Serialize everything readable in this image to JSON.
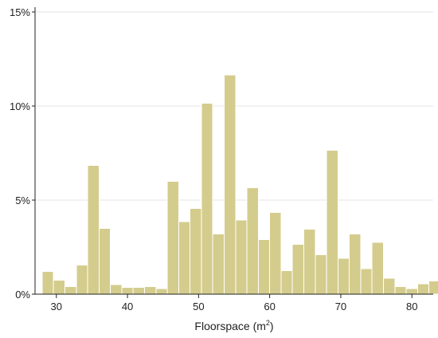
{
  "chart_data": {
    "type": "bar",
    "subtype": "histogram",
    "xlabel": "Floorspace (m",
    "xlabel_superscript": "2",
    "xlabel_suffix": ")",
    "ylabel": "",
    "xlim": [
      27,
      83
    ],
    "ylim": [
      0,
      15
    ],
    "y_ticks": [
      0,
      5,
      10,
      15
    ],
    "y_tick_labels": [
      "0%",
      "5%",
      "10%",
      "15%"
    ],
    "x_ticks": [
      30,
      40,
      50,
      60,
      70,
      80
    ],
    "x_tick_labels": [
      "30",
      "40",
      "50",
      "60",
      "70",
      "80"
    ],
    "grid": "horizontal",
    "legend": "none",
    "bin_width": 1.6,
    "bins_start": 28.0,
    "values": [
      1.2,
      0.75,
      0.4,
      1.55,
      6.85,
      3.5,
      0.5,
      0.35,
      0.35,
      0.4,
      0.3,
      6.0,
      3.85,
      4.55,
      10.15,
      3.2,
      11.65,
      3.95,
      5.65,
      2.9,
      4.35,
      1.25,
      2.65,
      3.45,
      2.1,
      7.65,
      1.9,
      3.2,
      1.35,
      2.75,
      0.85,
      0.4,
      0.3,
      0.55,
      0.7
    ],
    "colors": {
      "bar_fill": "#d4cc8d",
      "bar_stroke": "#ffffff",
      "axis": "#222222",
      "grid": "#e6e6e6",
      "text": "#222222"
    }
  }
}
